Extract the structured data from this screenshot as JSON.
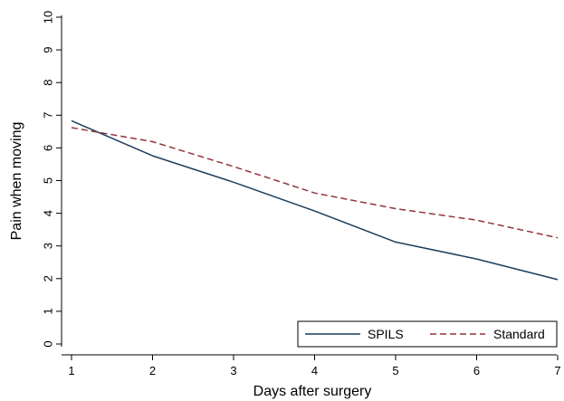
{
  "chart_data": {
    "type": "line",
    "xlabel": "Days after surgery",
    "ylabel": "Pain when moving",
    "x": [
      1,
      2,
      3,
      4,
      5,
      6,
      7
    ],
    "xlim": [
      1,
      7
    ],
    "ylim": [
      0,
      10
    ],
    "xticks": [
      "1",
      "2",
      "3",
      "4",
      "5",
      "6",
      "7"
    ],
    "yticks": [
      "0",
      "1",
      "2",
      "3",
      "4",
      "5",
      "6",
      "7",
      "8",
      "9",
      "10"
    ],
    "grid": false,
    "legend_position": "bottom-right",
    "series": [
      {
        "name": "SPILS",
        "values": [
          6.83,
          5.76,
          4.95,
          4.07,
          3.12,
          2.6,
          1.97
        ],
        "color": "#1b3f5e",
        "style": "solid"
      },
      {
        "name": "Standard",
        "values": [
          6.62,
          6.19,
          5.43,
          4.62,
          4.14,
          3.79,
          3.25
        ],
        "color": "#90353b",
        "style": "dashed"
      }
    ]
  }
}
